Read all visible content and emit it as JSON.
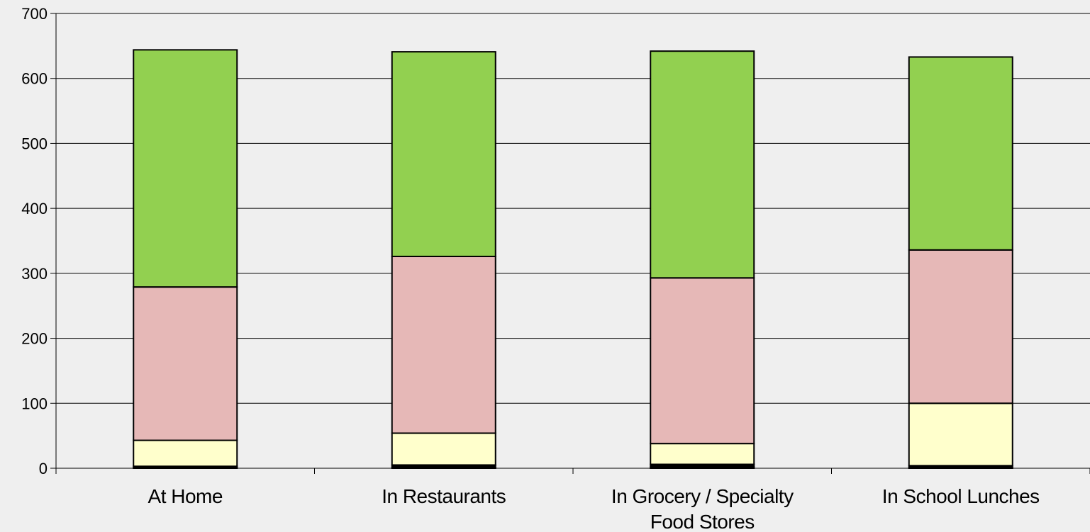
{
  "chart_data": {
    "type": "bar",
    "stacked": true,
    "title": "",
    "xlabel": "",
    "ylabel": "",
    "ylim": [
      0,
      700
    ],
    "yticks": [
      0,
      100,
      200,
      300,
      400,
      500,
      600,
      700
    ],
    "grid": true,
    "legend": "none",
    "categories": [
      [
        "At Home"
      ],
      [
        "In Restaurants"
      ],
      [
        "In Grocery / Specialty",
        "Food Stores"
      ],
      [
        "In School Lunches"
      ]
    ],
    "series": [
      {
        "color": "#000080",
        "values": [
          1,
          1,
          2,
          1
        ]
      },
      {
        "color": "#000000",
        "values": [
          2,
          4,
          4,
          3
        ]
      },
      {
        "color": "#ffffcc",
        "values": [
          40,
          49,
          32,
          96
        ]
      },
      {
        "color": "#e6b8b7",
        "values": [
          236,
          272,
          255,
          236
        ]
      },
      {
        "color": "#92d050",
        "values": [
          365,
          315,
          349,
          297
        ]
      }
    ]
  }
}
